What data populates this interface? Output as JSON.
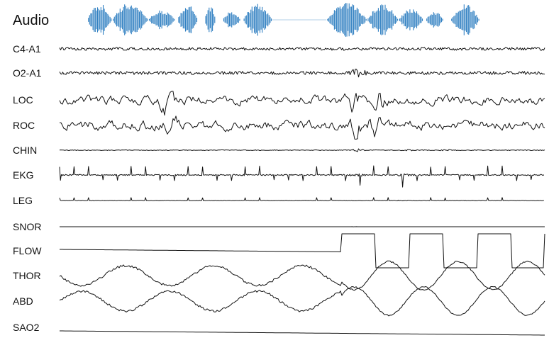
{
  "chart_data": {
    "type": "line",
    "title": "",
    "xlabel": "",
    "ylabel": "",
    "grid": false,
    "legend": "none",
    "audio": {
      "label": "Audio",
      "color": "#2f7fc1",
      "bursts": [
        {
          "start": 0.03,
          "end": 0.085,
          "amplitude": 0.95
        },
        {
          "start": 0.085,
          "end": 0.165,
          "amplitude": 1.0
        },
        {
          "start": 0.165,
          "end": 0.225,
          "amplitude": 0.55
        },
        {
          "start": 0.23,
          "end": 0.275,
          "amplitude": 0.9
        },
        {
          "start": 0.29,
          "end": 0.315,
          "amplitude": 0.8
        },
        {
          "start": 0.33,
          "end": 0.37,
          "amplitude": 0.5
        },
        {
          "start": 0.375,
          "end": 0.44,
          "amplitude": 0.95
        },
        {
          "start": 0.56,
          "end": 0.65,
          "amplitude": 1.0
        },
        {
          "start": 0.65,
          "end": 0.72,
          "amplitude": 0.9
        },
        {
          "start": 0.72,
          "end": 0.775,
          "amplitude": 0.65
        },
        {
          "start": 0.78,
          "end": 0.82,
          "amplitude": 0.5
        },
        {
          "start": 0.835,
          "end": 0.9,
          "amplitude": 0.9
        }
      ]
    },
    "channels": [
      {
        "name": "C4-A1",
        "kind": "eeg",
        "amplitude": 0.4,
        "events": []
      },
      {
        "name": "O2-A1",
        "kind": "eeg",
        "amplitude": 0.45,
        "events": [
          {
            "at": 0.615,
            "amplitude": 2.5
          }
        ]
      },
      {
        "name": "LOC",
        "kind": "eog",
        "amplitude": 0.65,
        "events": [
          {
            "at": 0.22,
            "amplitude": 2.8
          },
          {
            "at": 0.605,
            "amplitude": 2.4
          },
          {
            "at": 0.66,
            "amplitude": 2.2
          }
        ]
      },
      {
        "name": "ROC",
        "kind": "eog",
        "amplitude": 0.7,
        "events": [
          {
            "at": 0.23,
            "amplitude": 2.6
          },
          {
            "at": 0.61,
            "amplitude": 1.8
          },
          {
            "at": 0.65,
            "amplitude": 2.0
          }
        ]
      },
      {
        "name": "CHIN",
        "kind": "emg",
        "amplitude": 0.2,
        "events": [
          {
            "at": 0.615,
            "amplitude": 3.5
          },
          {
            "at": 0.72,
            "amplitude": 1.4
          },
          {
            "at": 0.8,
            "amplitude": 1.2
          }
        ]
      },
      {
        "name": "EKG",
        "kind": "ekg",
        "amplitude": 0.55,
        "beats": 34,
        "events": [
          {
            "at": 0.615,
            "amplitude": 1.5
          },
          {
            "at": 0.71,
            "amplitude": 1.3
          }
        ]
      },
      {
        "name": "LEG",
        "kind": "leg",
        "amplitude": 0.15,
        "beats": 34,
        "events": [
          {
            "at": 0.705,
            "amplitude": 1.2
          }
        ]
      },
      {
        "name": "SNOR",
        "kind": "flat",
        "amplitude": 0.03,
        "events": [
          {
            "at": 0.61,
            "amplitude": 2.0
          }
        ]
      },
      {
        "name": "FLOW",
        "kind": "flow",
        "amplitude": 1.0,
        "events": []
      },
      {
        "name": "THOR",
        "kind": "thor",
        "amplitude": 1.0,
        "events": []
      },
      {
        "name": "ABD",
        "kind": "abd",
        "amplitude": 1.0,
        "events": []
      },
      {
        "name": "SAO2",
        "kind": "sao2",
        "amplitude": 1.0,
        "events": []
      }
    ]
  }
}
